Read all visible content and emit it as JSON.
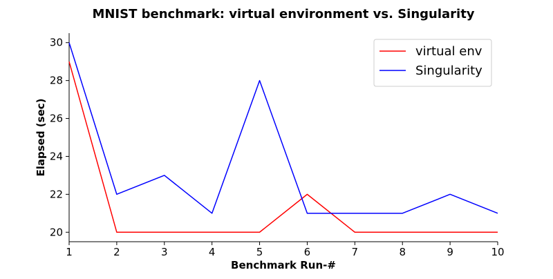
{
  "chart_data": {
    "type": "line",
    "title": "MNIST benchmark: virtual environment vs. Singularity",
    "xlabel": "Benchmark Run-#",
    "ylabel": "Elapsed (sec)",
    "x": [
      1,
      2,
      3,
      4,
      5,
      6,
      7,
      8,
      9,
      10
    ],
    "xlim": [
      1,
      10
    ],
    "ylim": [
      19.5,
      30.5
    ],
    "xticks": [
      1,
      2,
      3,
      4,
      5,
      6,
      7,
      8,
      9,
      10
    ],
    "yticks": [
      20,
      22,
      24,
      26,
      28,
      30
    ],
    "grid": false,
    "legend_position": "top-right",
    "series": [
      {
        "name": "virtual env",
        "color": "#ff0000",
        "values": [
          29,
          20,
          20,
          20,
          20,
          22,
          20,
          20,
          20,
          20
        ]
      },
      {
        "name": "Singularity",
        "color": "#0000ff",
        "values": [
          30,
          22,
          23,
          21,
          28,
          21,
          21,
          21,
          22,
          21
        ]
      }
    ]
  }
}
